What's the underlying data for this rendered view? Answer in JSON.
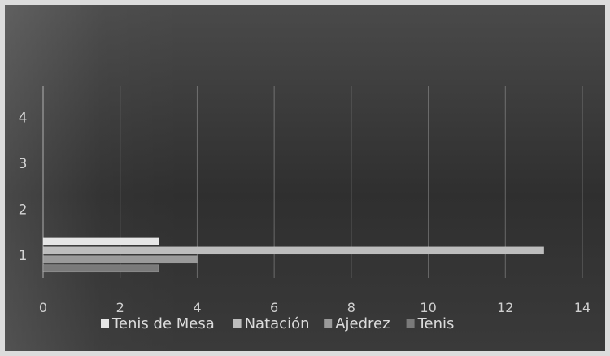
{
  "chart_data": {
    "type": "bar",
    "orientation": "horizontal",
    "categories": [
      "1"
    ],
    "series": [
      {
        "name": "Tenis de Mesa",
        "values": [
          3
        ],
        "color": "#e6e6e6"
      },
      {
        "name": "Natación",
        "values": [
          13
        ],
        "color": "#bdbdbd"
      },
      {
        "name": "Ajedrez",
        "values": [
          4
        ],
        "color": "#9a9a9a"
      },
      {
        "name": "Tenis",
        "values": [
          3
        ],
        "color": "#7a7a7a"
      }
    ],
    "x_ticks": [
      "0",
      "2",
      "4",
      "6",
      "8",
      "10",
      "12",
      "14"
    ],
    "y_ticks": [
      "1",
      "2",
      "3",
      "4"
    ],
    "xlim": [
      0,
      14
    ],
    "ylim": [
      0.5,
      4.5
    ],
    "grid": "vertical",
    "legend_position": "bottom",
    "title": "",
    "xlabel": "",
    "ylabel": ""
  }
}
